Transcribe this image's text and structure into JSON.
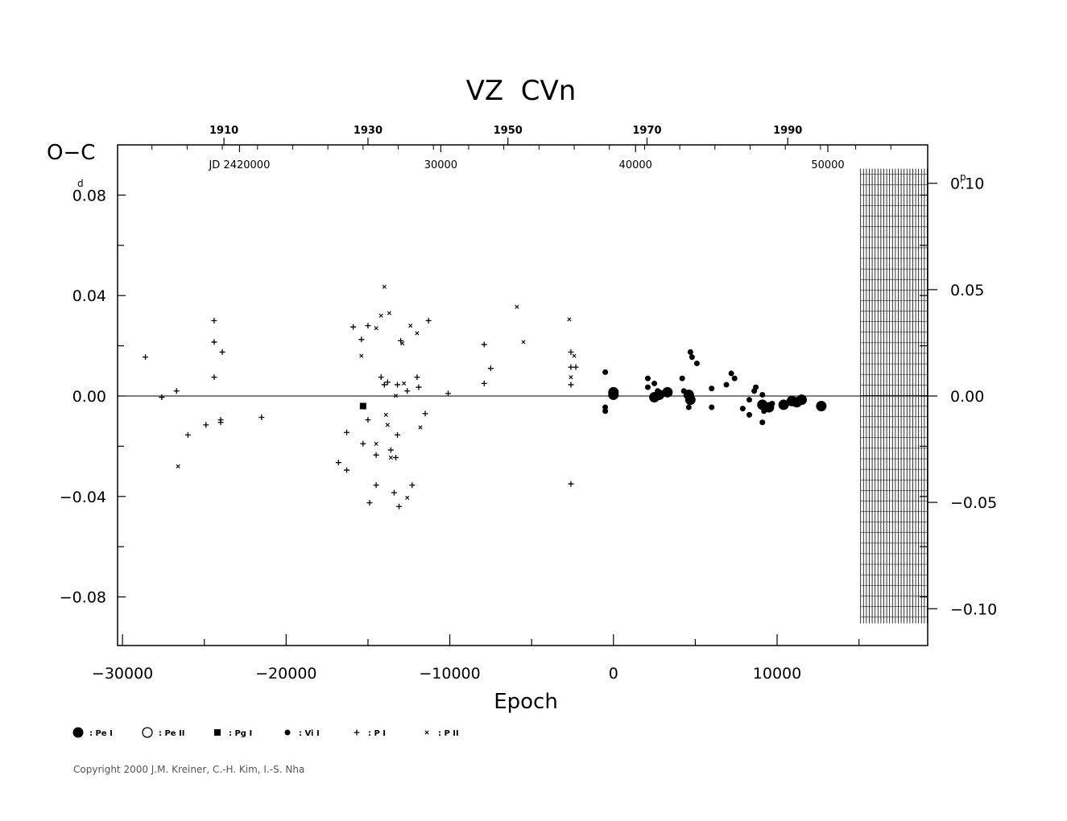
{
  "chart_data": {
    "type": "scatter",
    "title": "VZ  CVn",
    "xlabel": "Epoch",
    "ylabel": "O−C",
    "y_unit_left": "d",
    "y_unit_right": "p",
    "xlim": [
      -30300,
      19200
    ],
    "ylim": [
      -0.1,
      0.1
    ],
    "x_ticks": [
      {
        "value": -30000,
        "label": "−30000"
      },
      {
        "value": -20000,
        "label": "−20000"
      },
      {
        "value": -10000,
        "label": "−10000"
      },
      {
        "value": 0,
        "label": "0"
      },
      {
        "value": 10000,
        "label": "10000"
      }
    ],
    "y_ticks_left": [
      {
        "value": 0.08,
        "label": "0.08"
      },
      {
        "value": 0.04,
        "label": "0.04"
      },
      {
        "value": 0.0,
        "label": "0.00"
      },
      {
        "value": -0.04,
        "label": "−0.04"
      },
      {
        "value": -0.08,
        "label": "−0.08"
      }
    ],
    "y_ticks_right": [
      {
        "value": 0.0847,
        "label": "0.10"
      },
      {
        "value": 0.04235,
        "label": "0.05"
      },
      {
        "value": 0.0,
        "label": "0.00"
      },
      {
        "value": -0.04235,
        "label": "−0.05"
      },
      {
        "value": -0.0847,
        "label": "−0.10"
      }
    ],
    "year_ticks": [
      {
        "epoch": -23800,
        "label": "1910"
      },
      {
        "epoch": -15000,
        "label": "1930"
      },
      {
        "epoch": -6450,
        "label": "1950"
      },
      {
        "epoch": 2050,
        "label": "1970"
      },
      {
        "epoch": 10650,
        "label": "1990"
      }
    ],
    "jd_labels": [
      {
        "epoch": -22850,
        "label": "JD  2420000"
      },
      {
        "epoch": -10550,
        "label": "30000"
      },
      {
        "epoch": 1350,
        "label": "40000"
      },
      {
        "epoch": 13100,
        "label": "50000"
      }
    ],
    "hatched_region": [
      15100,
      19200
    ],
    "legend": [
      {
        "key": "pe1",
        "label": ": Pe I"
      },
      {
        "key": "pe2",
        "label": ": Pe II"
      },
      {
        "key": "pg1",
        "label": ": Pg I"
      },
      {
        "key": "vi1",
        "label": ": Vi I"
      },
      {
        "key": "p1",
        "label": ": P I"
      },
      {
        "key": "p2",
        "label": ": P II"
      }
    ],
    "series": [
      {
        "key": "p1",
        "points": [
          [
            -28600,
            0.0155
          ],
          [
            -27600,
            -0.0005
          ],
          [
            -26700,
            0.002
          ],
          [
            -26000,
            -0.0155
          ],
          [
            -24900,
            -0.0115
          ],
          [
            -24400,
            0.03
          ],
          [
            -24400,
            0.0215
          ],
          [
            -24400,
            0.0075
          ],
          [
            -24000,
            -0.0095
          ],
          [
            -24000,
            -0.0105
          ],
          [
            -23900,
            0.0175
          ],
          [
            -21500,
            -0.0085
          ],
          [
            -16800,
            -0.0265
          ],
          [
            -16300,
            -0.0295
          ],
          [
            -16300,
            -0.0145
          ],
          [
            -15900,
            0.0275
          ],
          [
            -15400,
            0.0225
          ],
          [
            -15300,
            -0.019
          ],
          [
            -15000,
            0.028
          ],
          [
            -15000,
            -0.0095
          ],
          [
            -14900,
            -0.0425
          ],
          [
            -14500,
            -0.0235
          ],
          [
            -14500,
            -0.0355
          ],
          [
            -14200,
            0.0075
          ],
          [
            -14000,
            0.0045
          ],
          [
            -13800,
            0.0055
          ],
          [
            -13600,
            -0.0215
          ],
          [
            -13400,
            -0.0385
          ],
          [
            -13300,
            -0.0245
          ],
          [
            -13200,
            0.0045
          ],
          [
            -13200,
            -0.0155
          ],
          [
            -13100,
            -0.044
          ],
          [
            -13000,
            0.022
          ],
          [
            -12600,
            0.002
          ],
          [
            -12300,
            -0.0355
          ],
          [
            -12000,
            0.0075
          ],
          [
            -11900,
            0.0035
          ],
          [
            -11500,
            -0.007
          ],
          [
            -11300,
            0.03
          ],
          [
            -10100,
            0.001
          ],
          [
            -7900,
            0.005
          ],
          [
            -7900,
            0.0205
          ],
          [
            -7500,
            0.011
          ],
          [
            -2600,
            0.0175
          ],
          [
            -2600,
            0.0115
          ],
          [
            -2600,
            0.0045
          ],
          [
            -2600,
            -0.035
          ],
          [
            -2300,
            0.0115
          ]
        ]
      },
      {
        "key": "p2",
        "points": [
          [
            -26600,
            -0.028
          ],
          [
            -15400,
            0.016
          ],
          [
            -14500,
            0.027
          ],
          [
            -14000,
            0.0435
          ],
          [
            -13900,
            -0.0075
          ],
          [
            -13800,
            -0.0115
          ],
          [
            -13700,
            0.033
          ],
          [
            -14500,
            -0.019
          ],
          [
            -13600,
            -0.0245
          ],
          [
            -12900,
            0.021
          ],
          [
            -12800,
            0.005
          ],
          [
            -12600,
            -0.0405
          ],
          [
            -12400,
            0.028
          ],
          [
            -12000,
            0.025
          ],
          [
            -11800,
            -0.0125
          ],
          [
            -5900,
            0.0355
          ],
          [
            -5500,
            0.0215
          ],
          [
            -2700,
            0.0305
          ],
          [
            -2600,
            0.0075
          ],
          [
            -2400,
            0.016
          ],
          [
            -13300,
            0.0001
          ],
          [
            -14200,
            0.032
          ]
        ]
      },
      {
        "key": "pg1",
        "points": [
          [
            -15300,
            -0.004
          ]
        ]
      },
      {
        "key": "vi1",
        "points": [
          [
            -500,
            0.0095
          ],
          [
            -500,
            -0.0045
          ],
          [
            -500,
            -0.006
          ],
          [
            2100,
            0.007
          ],
          [
            2100,
            0.0035
          ],
          [
            2500,
            0.005
          ],
          [
            2700,
            0.002
          ],
          [
            4200,
            0.007
          ],
          [
            4300,
            0.002
          ],
          [
            4700,
            0.0175
          ],
          [
            4800,
            0.0155
          ],
          [
            5100,
            0.013
          ],
          [
            4600,
            -0.0045
          ],
          [
            6000,
            0.003
          ],
          [
            6000,
            -0.0045
          ],
          [
            6900,
            0.0045
          ],
          [
            7200,
            0.009
          ],
          [
            7400,
            0.007
          ],
          [
            7900,
            -0.005
          ],
          [
            8300,
            -0.0015
          ],
          [
            8300,
            -0.0075
          ],
          [
            8600,
            0.002
          ],
          [
            8700,
            0.0035
          ],
          [
            9100,
            0.0005
          ],
          [
            9100,
            -0.0105
          ],
          [
            9200,
            -0.006
          ],
          [
            9700,
            -0.003
          ]
        ]
      },
      {
        "key": "pe1",
        "points": [
          [
            0,
            0.0015
          ],
          [
            0,
            0.0005
          ],
          [
            2500,
            -0.0005
          ],
          [
            2800,
            0.0005
          ],
          [
            3300,
            0.0015
          ],
          [
            4600,
            0.0005
          ],
          [
            4700,
            -0.0015
          ],
          [
            9100,
            -0.0035
          ],
          [
            9500,
            -0.0045
          ],
          [
            10400,
            -0.0035
          ],
          [
            10900,
            -0.002
          ],
          [
            11200,
            -0.0025
          ],
          [
            11500,
            -0.0015
          ],
          [
            12700,
            -0.004
          ]
        ]
      }
    ]
  },
  "footer": {
    "copyright": "Copyright 2000 J.M. Kreiner, C.-H. Kim, I.-S. Nha"
  }
}
